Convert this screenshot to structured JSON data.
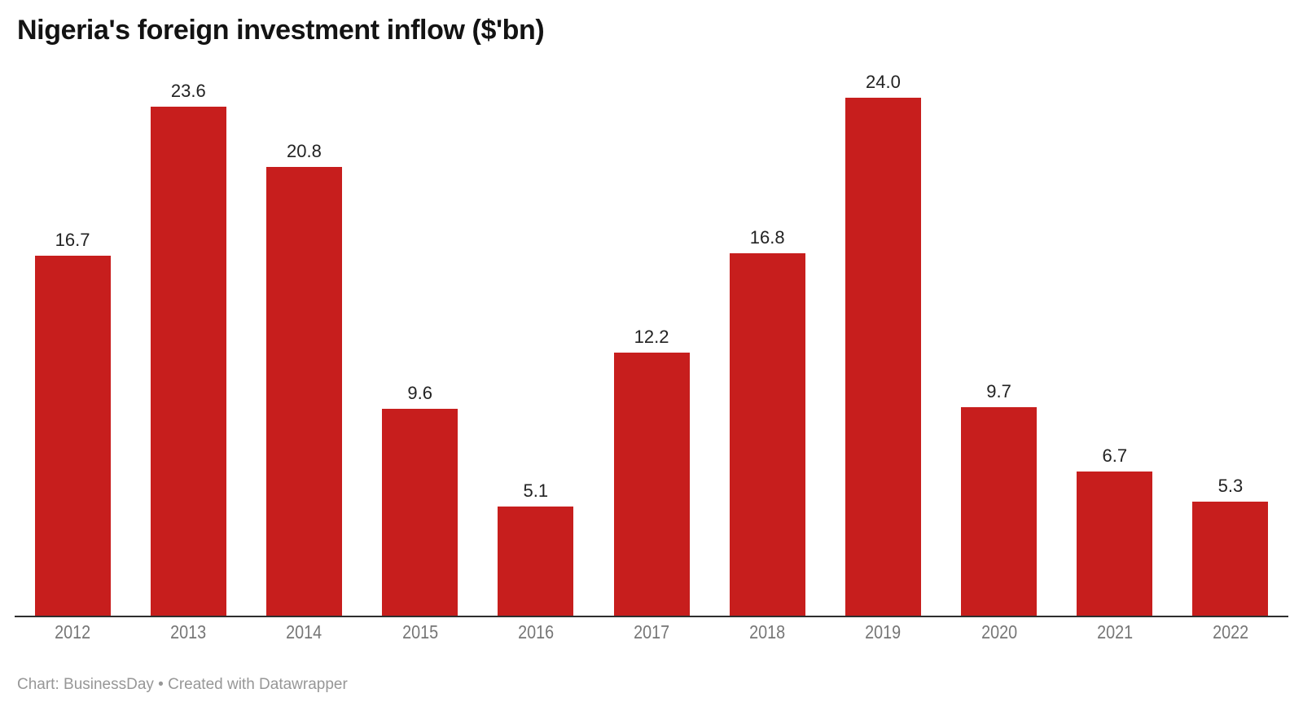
{
  "header": {
    "title": "Nigeria's foreign investment inflow ($'bn)"
  },
  "footer": {
    "credit": "Chart: BusinessDay • Created with Datawrapper"
  },
  "colors": {
    "bar": "#c71e1d",
    "title_text": "#131313",
    "value_label": "#222222",
    "tick_label": "#767676",
    "axis_line": "#2e2e2e",
    "footer_text": "#979797"
  },
  "chart_data": {
    "type": "bar",
    "title": "Nigeria's foreign investment inflow ($'bn)",
    "categories": [
      "2012",
      "2013",
      "2014",
      "2015",
      "2016",
      "2017",
      "2018",
      "2019",
      "2020",
      "2021",
      "2022"
    ],
    "values": [
      16.7,
      23.6,
      20.8,
      9.6,
      5.1,
      12.2,
      16.8,
      24.0,
      9.7,
      6.7,
      5.3
    ],
    "value_labels": [
      "16.7",
      "23.6",
      "20.8",
      "9.6",
      "5.1",
      "12.2",
      "16.8",
      "24.0",
      "9.7",
      "6.7",
      "5.3"
    ],
    "xlabel": "",
    "ylabel": "",
    "ylim": [
      0,
      24
    ],
    "grid": false,
    "legend": false,
    "bar_color": "#c71e1d"
  }
}
